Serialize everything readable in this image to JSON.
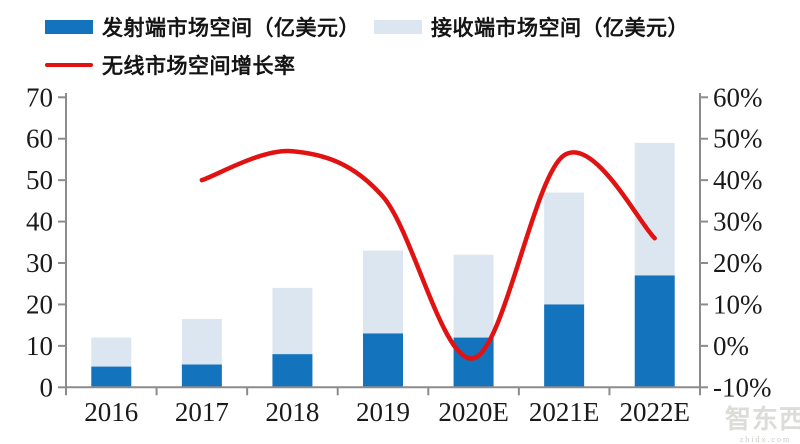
{
  "legend": {
    "items": [
      {
        "label": "发射端市场空间（亿美元）",
        "marker": "bar",
        "color": "#1473BD"
      },
      {
        "label": "接收端市场空间（亿美元）",
        "marker": "bar",
        "color": "#DCE6F1"
      },
      {
        "label": "无线市场空间增长率",
        "marker": "line",
        "color": "#E01212"
      }
    ]
  },
  "watermark": {
    "brand": "智东西",
    "domain": "zhidx.com"
  },
  "colors": {
    "axis": "#8C8C8C",
    "tick_text": "#1A1A1A",
    "background": "#FFFFFF"
  },
  "chart_data": {
    "type": "bar",
    "subtype": "stacked-bar-with-line",
    "title": "",
    "categories": [
      "2016",
      "2017",
      "2018",
      "2019",
      "2020E",
      "2021E",
      "2022E"
    ],
    "series": [
      {
        "name": "发射端市场空间（亿美元）",
        "type": "bar",
        "stack": "total",
        "axis": "left",
        "color": "#1473BD",
        "values": [
          5,
          5.5,
          8,
          13,
          12,
          20,
          27
        ]
      },
      {
        "name": "接收端市场空间（亿美元）",
        "type": "bar",
        "stack": "total",
        "axis": "left",
        "color": "#DCE6F1",
        "values": [
          7,
          11,
          16,
          20,
          20,
          27,
          32
        ]
      },
      {
        "name": "无线市场空间增长率",
        "type": "line",
        "axis": "right",
        "color": "#E01212",
        "values": [
          null,
          40,
          47,
          36,
          -3,
          46,
          26
        ]
      }
    ],
    "stacked_totals": [
      12,
      16.5,
      24,
      33,
      32,
      47,
      59
    ],
    "left_axis": {
      "min": 0,
      "max": 70,
      "tick_step": 10,
      "tick_labels": [
        "0",
        "10",
        "20",
        "30",
        "40",
        "50",
        "60",
        "70"
      ]
    },
    "right_axis": {
      "min": -10,
      "max": 60,
      "tick_step": 10,
      "tick_labels": [
        "-10%",
        "0%",
        "10%",
        "20%",
        "30%",
        "40%",
        "50%",
        "60%"
      ]
    },
    "grid": false,
    "legend_position": "top-left"
  }
}
